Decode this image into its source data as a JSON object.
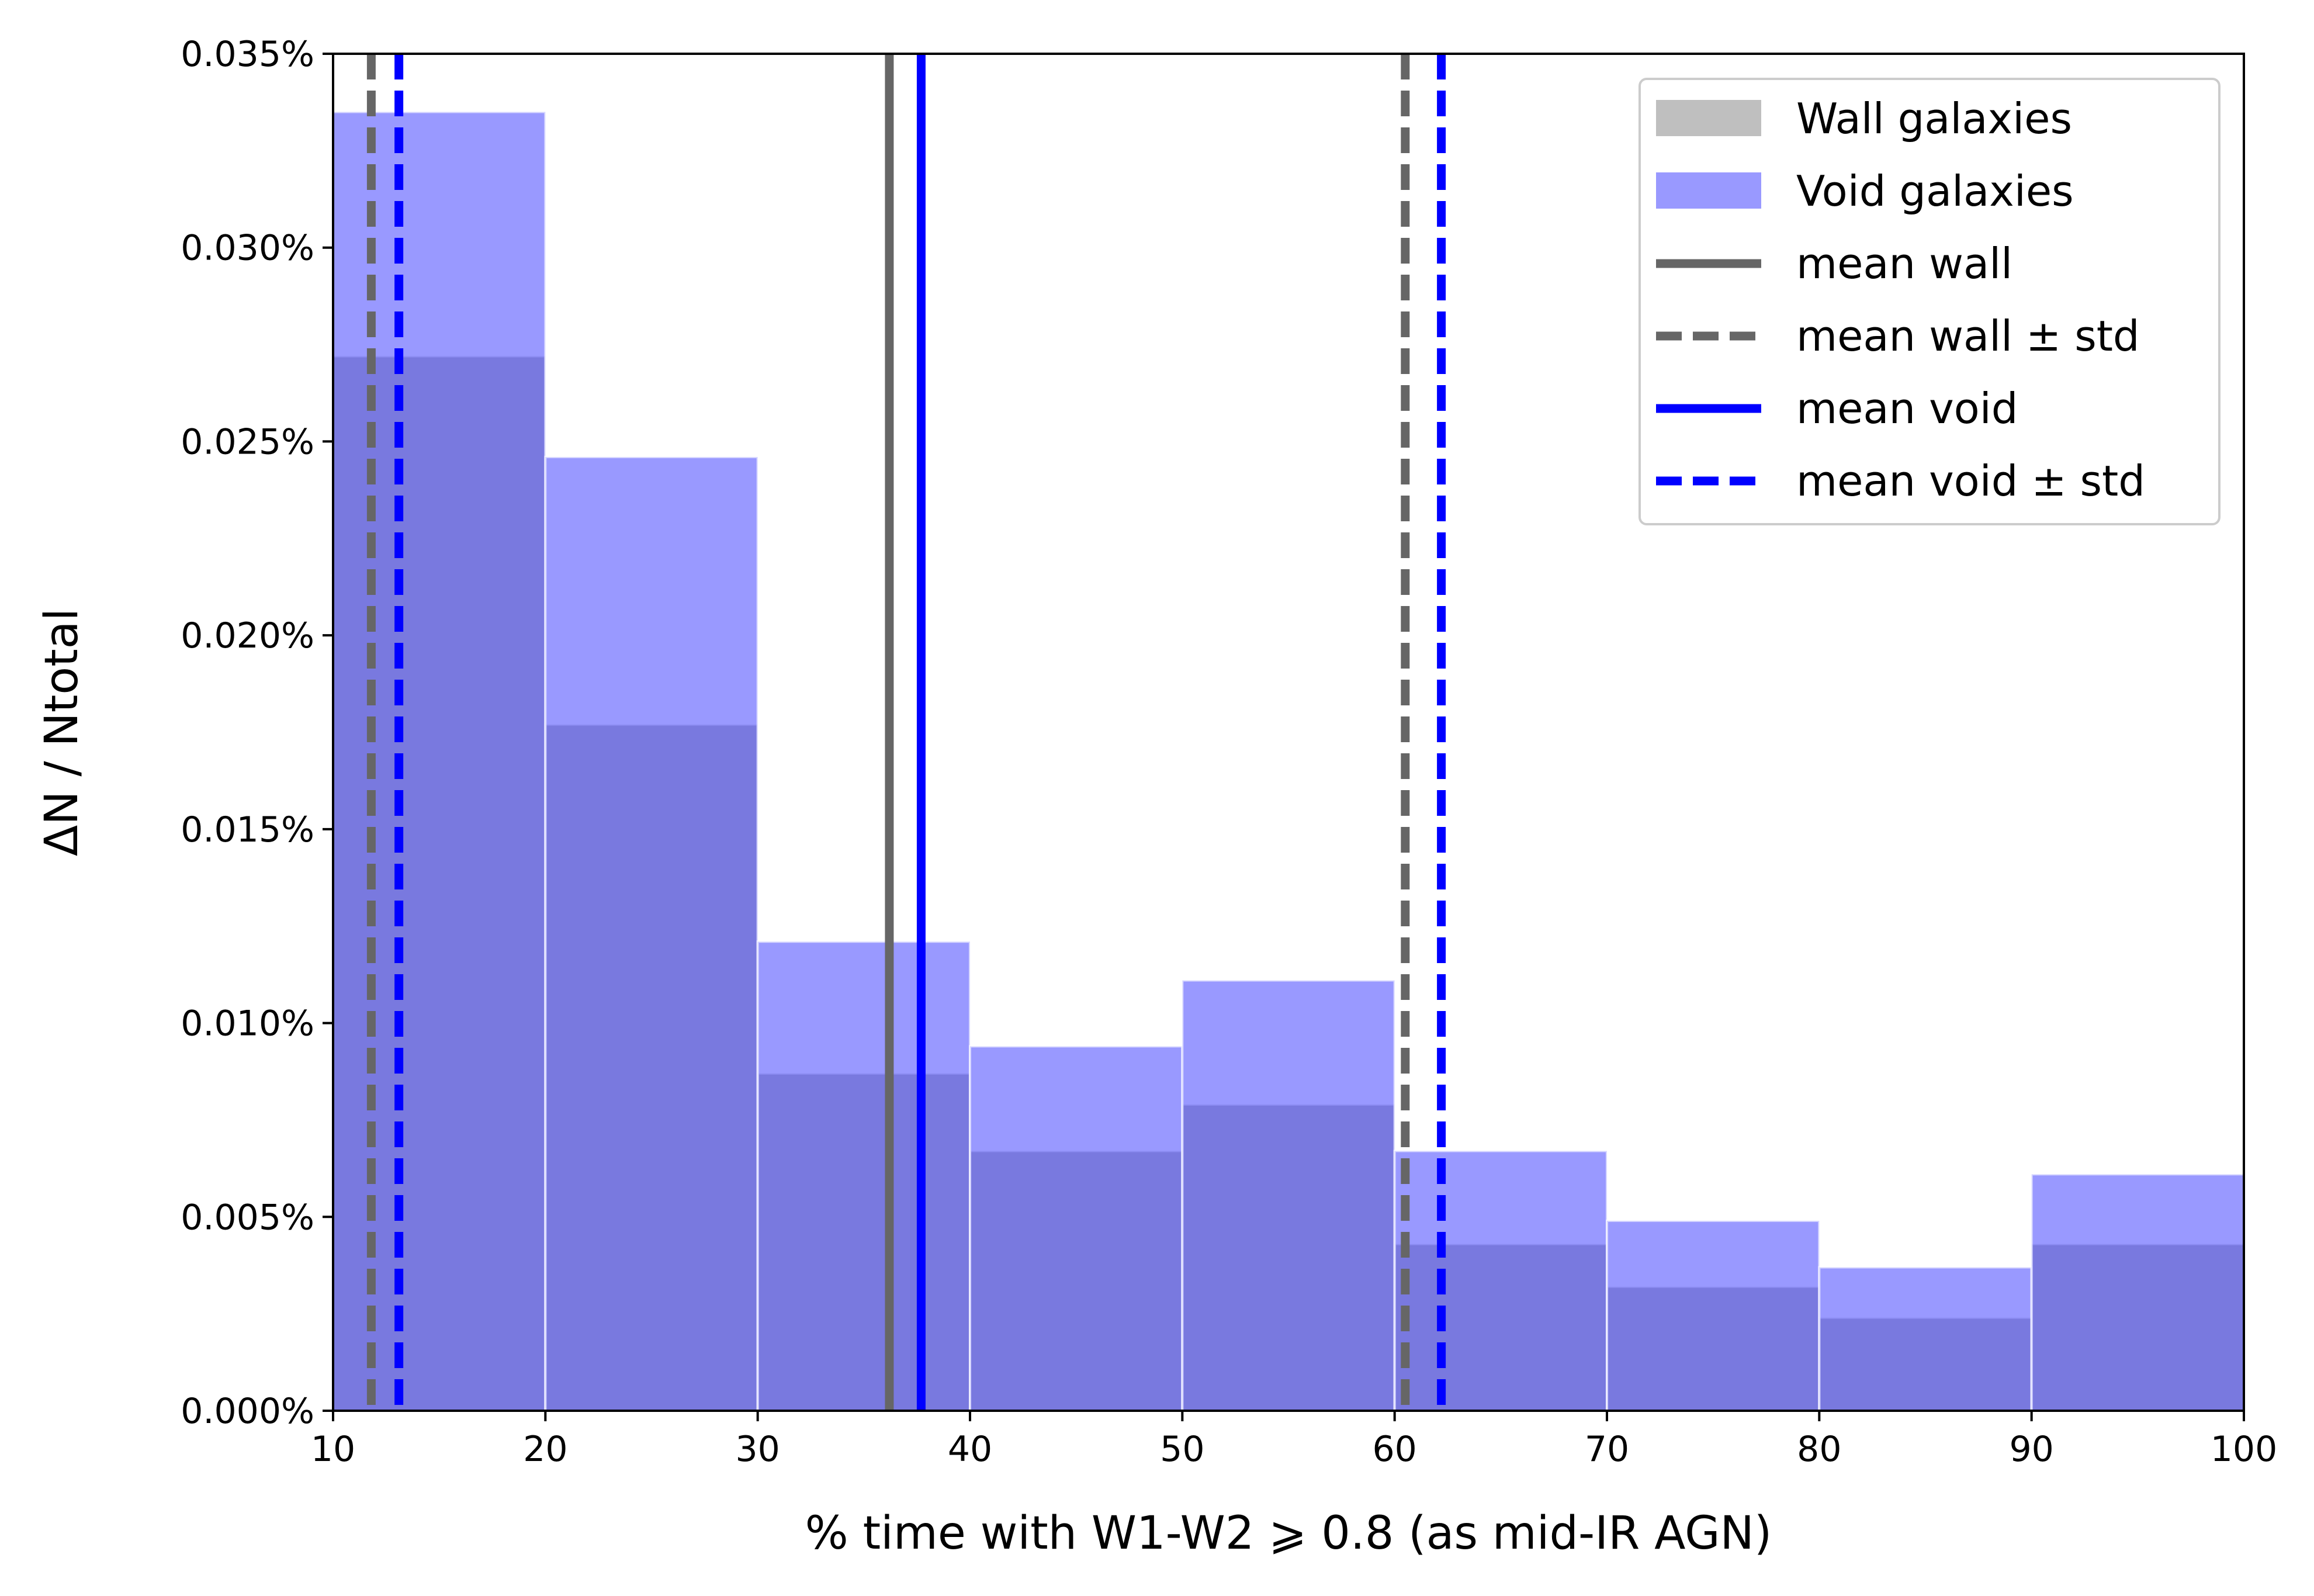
{
  "chart_data": {
    "type": "bar",
    "xlabel": "% time with W1-W2 ⩾ 0.8 (as mid-IR AGN)",
    "ylabel": "ΔN / Ntotal",
    "xlim": [
      10,
      100
    ],
    "ylim": [
      0,
      0.035
    ],
    "x_ticks": [
      10,
      20,
      30,
      40,
      50,
      60,
      70,
      80,
      90,
      100
    ],
    "x_tick_labels": [
      "10",
      "20",
      "30",
      "40",
      "50",
      "60",
      "70",
      "80",
      "90",
      "100"
    ],
    "y_ticks": [
      0,
      0.005,
      0.01,
      0.015,
      0.02,
      0.025,
      0.03,
      0.035
    ],
    "y_tick_labels": [
      "0.000%",
      "0.005%",
      "0.010%",
      "0.015%",
      "0.020%",
      "0.025%",
      "0.030%",
      "0.035%"
    ],
    "bin_edges": [
      10,
      20,
      30,
      40,
      50,
      60,
      70,
      80,
      90,
      100
    ],
    "series": [
      {
        "name": "Wall galaxies",
        "color": "#808080",
        "values": [
          0.0272,
          0.0177,
          0.0087,
          0.0067,
          0.0079,
          0.0043,
          0.0032,
          0.0024,
          0.0043
        ]
      },
      {
        "name": "Void galaxies",
        "color": "#3333ff",
        "values": [
          0.0335,
          0.0246,
          0.0121,
          0.0094,
          0.0111,
          0.0067,
          0.0049,
          0.0037,
          0.0061
        ]
      }
    ],
    "vlines": [
      {
        "name": "mean wall",
        "x": 36.2,
        "color": "#666666",
        "style": "solid"
      },
      {
        "name": "mean wall ± std",
        "x": 11.8,
        "color": "#666666",
        "style": "dashed"
      },
      {
        "name": "mean wall ± std",
        "x": 60.5,
        "color": "#666666",
        "style": "dashed"
      },
      {
        "name": "mean void",
        "x": 37.7,
        "color": "#0000ff",
        "style": "solid"
      },
      {
        "name": "mean void ± std",
        "x": 13.1,
        "color": "#0000ff",
        "style": "dashed"
      },
      {
        "name": "mean void ± std",
        "x": 62.2,
        "color": "#0000ff",
        "style": "dashed"
      }
    ],
    "legend": {
      "placement": "top-right",
      "entries": [
        {
          "label": "Wall galaxies",
          "kind": "patch",
          "color": "#808080",
          "opacity": 0.5
        },
        {
          "label": "Void galaxies",
          "kind": "patch",
          "color": "#3333ff",
          "opacity": 0.5
        },
        {
          "label": "mean wall",
          "kind": "line",
          "color": "#666666",
          "style": "solid"
        },
        {
          "label": "mean wall ± std",
          "kind": "line",
          "color": "#666666",
          "style": "dashed"
        },
        {
          "label": "mean void",
          "kind": "line",
          "color": "#0000ff",
          "style": "solid"
        },
        {
          "label": "mean void ± std",
          "kind": "line",
          "color": "#0000ff",
          "style": "dashed"
        }
      ]
    },
    "grid": false
  }
}
